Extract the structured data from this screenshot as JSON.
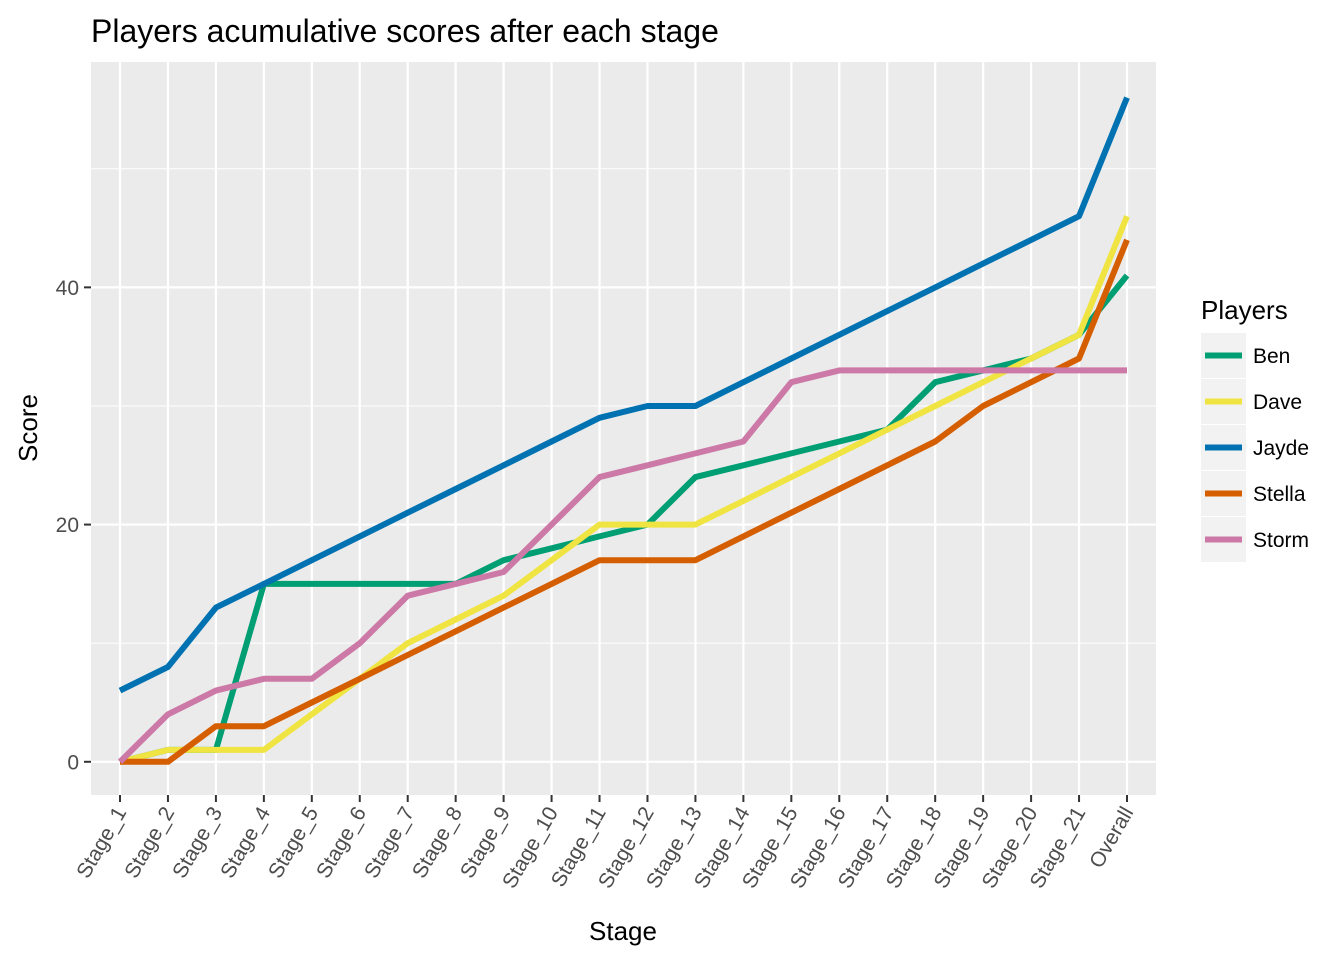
{
  "chart_data": {
    "type": "line",
    "title": "Players acumulative scores after each stage",
    "xlabel": "Stage",
    "ylabel": "Score",
    "categories": [
      "Stage_1",
      "Stage_2",
      "Stage_3",
      "Stage_4",
      "Stage_5",
      "Stage_6",
      "Stage_7",
      "Stage_8",
      "Stage_9",
      "Stage_10",
      "Stage_11",
      "Stage_12",
      "Stage_13",
      "Stage_14",
      "Stage_15",
      "Stage_16",
      "Stage_17",
      "Stage_18",
      "Stage_19",
      "Stage_20",
      "Stage_21",
      "Overall"
    ],
    "ylim": [
      -2.8,
      59
    ],
    "yticks": [
      0,
      20,
      40
    ],
    "grid": true,
    "legend": {
      "title": "Players",
      "position": "right"
    },
    "series": [
      {
        "name": "Ben",
        "color": "#009E73",
        "values": [
          0,
          1,
          1,
          15,
          15,
          15,
          15,
          15,
          17,
          18,
          19,
          20,
          24,
          25,
          26,
          27,
          28,
          32,
          33,
          34,
          36,
          41
        ]
      },
      {
        "name": "Dave",
        "color": "#F0E442",
        "values": [
          0,
          1,
          1,
          1,
          4,
          7,
          10,
          12,
          14,
          17,
          20,
          20,
          20,
          22,
          24,
          26,
          28,
          30,
          32,
          34,
          36,
          46
        ]
      },
      {
        "name": "Jayde",
        "color": "#0072B2",
        "values": [
          6,
          8,
          13,
          15,
          17,
          19,
          21,
          23,
          25,
          27,
          29,
          30,
          30,
          32,
          34,
          36,
          38,
          40,
          42,
          44,
          46,
          56
        ]
      },
      {
        "name": "Stella",
        "color": "#D55E00",
        "values": [
          0,
          0,
          3,
          3,
          5,
          7,
          9,
          11,
          13,
          15,
          17,
          17,
          17,
          19,
          21,
          23,
          25,
          27,
          30,
          32,
          34,
          44
        ]
      },
      {
        "name": "Storm",
        "color": "#CC79A7",
        "values": [
          0,
          4,
          6,
          7,
          7,
          10,
          14,
          15,
          16,
          20,
          24,
          25,
          26,
          27,
          32,
          33,
          33,
          33,
          33,
          33,
          33,
          33
        ]
      }
    ]
  }
}
